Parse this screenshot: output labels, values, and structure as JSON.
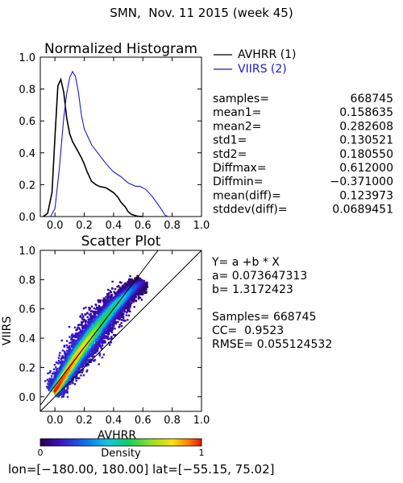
{
  "page_title": "SMN,  Nov. 11 2015 (week 45)",
  "colors": {
    "series1": "#000000",
    "series2": "#1a1acc",
    "fit_line": "#000000"
  },
  "stats": [
    {
      "label": "samples=",
      "value": "668745"
    },
    {
      "label": "mean1=",
      "value": "0.158635"
    },
    {
      "label": "mean2=",
      "value": "0.282608"
    },
    {
      "label": "std1=",
      "value": "0.130521"
    },
    {
      "label": "std2=",
      "value": "0.180550"
    },
    {
      "label": "Diffmax=",
      "value": "0.612000"
    },
    {
      "label": "Diffmin=",
      "value": "−0.371000"
    },
    {
      "label": "mean(diff)=",
      "value": "0.123973"
    },
    {
      "label": "stddev(diff)=",
      "value": "0.0689451"
    }
  ],
  "regression": {
    "equation": "Y= a +b * X",
    "a_line": "a= 0.073647313",
    "b_line": "b= 1.3172423",
    "samples_line": "Samples= 668745",
    "cc_line": "CC=  0.9523",
    "rmse_line": "RMSE= 0.055124532"
  },
  "colorbar": {
    "label": "Density",
    "min_label": "0",
    "max_label": "1"
  },
  "footer": "lon=[−180.00, 180.00] lat=[−55.15, 75.02]",
  "chart_data": [
    {
      "type": "line",
      "title": "Normalized Histogram",
      "xlabel": "",
      "ylabel": "",
      "xlim": [
        -0.1,
        1.0
      ],
      "ylim": [
        0.0,
        1.0
      ],
      "xticks": [
        "0.0",
        "0.2",
        "0.4",
        "0.6",
        "0.8",
        "1.0"
      ],
      "yticks": [
        "0.0",
        "0.2",
        "0.4",
        "0.6",
        "0.8",
        "1.0"
      ],
      "legend_position": "outside-right",
      "series": [
        {
          "name": "AVHRR (1)",
          "color": "#000000",
          "x": [
            -0.08,
            -0.05,
            -0.02,
            0.0,
            0.02,
            0.04,
            0.06,
            0.08,
            0.1,
            0.12,
            0.15,
            0.18,
            0.2,
            0.22,
            0.25,
            0.28,
            0.3,
            0.35,
            0.4,
            0.43,
            0.45,
            0.48,
            0.5,
            0.52,
            0.54,
            0.56,
            0.58,
            0.6
          ],
          "y": [
            0.0,
            0.02,
            0.15,
            0.5,
            0.82,
            0.86,
            0.78,
            0.62,
            0.52,
            0.47,
            0.42,
            0.37,
            0.33,
            0.28,
            0.22,
            0.2,
            0.19,
            0.18,
            0.15,
            0.12,
            0.09,
            0.06,
            0.03,
            0.015,
            0.008,
            0.003,
            0.001,
            0.0
          ]
        },
        {
          "name": "VIIRS (2)",
          "color": "#1a1acc",
          "x": [
            -0.03,
            0.0,
            0.03,
            0.06,
            0.08,
            0.1,
            0.12,
            0.14,
            0.16,
            0.18,
            0.2,
            0.25,
            0.3,
            0.35,
            0.4,
            0.45,
            0.5,
            0.55,
            0.58,
            0.62,
            0.66,
            0.7,
            0.73,
            0.75,
            0.77
          ],
          "y": [
            0.0,
            0.05,
            0.3,
            0.62,
            0.77,
            0.87,
            0.91,
            0.88,
            0.78,
            0.64,
            0.55,
            0.45,
            0.39,
            0.33,
            0.28,
            0.25,
            0.21,
            0.19,
            0.19,
            0.17,
            0.13,
            0.08,
            0.04,
            0.01,
            0.0
          ]
        }
      ]
    },
    {
      "type": "scatter",
      "title": "Scatter Plot",
      "xlabel": "AVHRR",
      "ylabel": "VIIRS",
      "xlim": [
        -0.1,
        1.0
      ],
      "ylim": [
        -0.1,
        1.0
      ],
      "xticks": [
        "0.0",
        "0.2",
        "0.4",
        "0.6",
        "0.8",
        "1.0"
      ],
      "yticks": [
        "0.0",
        "0.2",
        "0.4",
        "0.6",
        "0.8",
        "1.0"
      ],
      "fit": {
        "a": 0.073647313,
        "b": 1.3172423
      },
      "reference_line": "1:1",
      "density_colorscale": "rainbow",
      "spine_x": [
        0.0,
        0.05,
        0.1,
        0.15,
        0.2,
        0.25,
        0.3,
        0.35,
        0.4,
        0.45,
        0.5,
        0.55,
        0.6
      ],
      "spine_y": [
        0.04,
        0.12,
        0.2,
        0.28,
        0.35,
        0.42,
        0.49,
        0.55,
        0.61,
        0.66,
        0.71,
        0.75,
        0.78
      ],
      "spine_halfwidth": [
        0.05,
        0.06,
        0.07,
        0.08,
        0.085,
        0.09,
        0.09,
        0.085,
        0.08,
        0.07,
        0.06,
        0.05,
        0.04
      ],
      "spine_density": [
        1.0,
        0.95,
        0.92,
        0.88,
        0.82,
        0.72,
        0.6,
        0.55,
        0.52,
        0.45,
        0.32,
        0.2,
        0.1
      ]
    }
  ]
}
